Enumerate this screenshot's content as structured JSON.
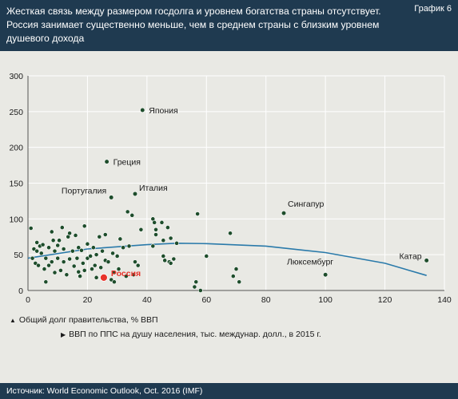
{
  "header": {
    "title": "Жесткая связь между размером госдолга и уровнем богатства страны отсутствует.\nРоссия занимает существенно меньше, чем в среднем страны с близким уровнем\nдушевого дохода",
    "tag": "График 6"
  },
  "notes": {
    "y_note": "Общий долг правительства, % ВВП",
    "x_note": "ВВП по ППС на душу населения, тыс. междунар. долл., в 2015 г."
  },
  "footer": {
    "source": "Источник: World Economic Outlook, Oct. 2016 (IMF)"
  },
  "colors": {
    "header_bg": "#1f3a50",
    "point": "#1e4d2b",
    "highlight": "#e8332a",
    "trend": "#2a7aaa",
    "grid": "#ffffff"
  },
  "chart_data": {
    "type": "scatter",
    "xlim": [
      0,
      140
    ],
    "ylim": [
      0,
      300
    ],
    "x_ticks": [
      0,
      20,
      40,
      60,
      80,
      100,
      120,
      140
    ],
    "y_ticks": [
      0,
      50,
      100,
      150,
      200,
      250,
      300
    ],
    "grid": true,
    "points": [
      [
        1,
        87
      ],
      [
        1.5,
        45
      ],
      [
        2,
        58
      ],
      [
        2.5,
        38
      ],
      [
        3,
        55
      ],
      [
        3,
        67
      ],
      [
        3.5,
        35
      ],
      [
        4,
        62
      ],
      [
        4.5,
        52
      ],
      [
        5,
        64
      ],
      [
        5.5,
        30
      ],
      [
        6,
        45
      ],
      [
        6,
        12
      ],
      [
        7,
        60
      ],
      [
        7,
        35
      ],
      [
        8,
        82
      ],
      [
        8,
        40
      ],
      [
        8.5,
        70
      ],
      [
        9,
        25
      ],
      [
        9,
        55
      ],
      [
        10,
        63
      ],
      [
        10,
        45
      ],
      [
        10.5,
        70
      ],
      [
        11,
        28
      ],
      [
        11.5,
        88
      ],
      [
        12,
        58
      ],
      [
        12,
        40
      ],
      [
        13,
        22
      ],
      [
        13.5,
        75
      ],
      [
        14,
        80
      ],
      [
        14,
        44
      ],
      [
        15,
        55
      ],
      [
        15.5,
        34
      ],
      [
        16,
        77
      ],
      [
        16.5,
        45
      ],
      [
        17,
        26
      ],
      [
        17,
        60
      ],
      [
        17.5,
        20
      ],
      [
        18,
        56
      ],
      [
        18.5,
        38
      ],
      [
        19,
        90
      ],
      [
        19,
        28
      ],
      [
        20,
        45
      ],
      [
        20,
        65
      ],
      [
        21,
        48
      ],
      [
        21.5,
        30
      ],
      [
        22,
        60
      ],
      [
        22.5,
        35
      ],
      [
        23,
        18
      ],
      [
        23,
        50
      ],
      [
        24,
        75
      ],
      [
        24.5,
        32
      ],
      [
        25,
        55
      ],
      [
        25.5,
        20
      ],
      [
        26,
        42
      ],
      [
        26,
        78
      ],
      [
        27,
        40
      ],
      [
        28,
        15
      ],
      [
        28.5,
        52
      ],
      [
        29,
        25
      ],
      [
        29,
        12
      ],
      [
        30,
        48
      ],
      [
        30.5,
        30
      ],
      [
        31,
        72
      ],
      [
        32,
        60
      ],
      [
        33,
        20
      ],
      [
        33.5,
        110
      ],
      [
        34,
        62
      ],
      [
        35,
        105
      ],
      [
        35.5,
        22
      ],
      [
        36,
        40
      ],
      [
        37,
        35
      ],
      [
        38,
        85
      ],
      [
        42,
        62
      ],
      [
        42,
        100
      ],
      [
        42.5,
        95
      ],
      [
        43,
        85
      ],
      [
        43,
        78
      ],
      [
        45,
        95
      ],
      [
        45.5,
        70
      ],
      [
        45.5,
        48
      ],
      [
        46,
        42
      ],
      [
        47,
        88
      ],
      [
        47.5,
        40
      ],
      [
        48,
        73
      ],
      [
        48,
        38
      ],
      [
        49,
        44
      ],
      [
        50,
        66
      ],
      [
        56,
        5
      ],
      [
        56.5,
        12
      ],
      [
        57,
        107
      ],
      [
        58,
        0
      ],
      [
        60,
        48
      ],
      [
        68,
        80
      ],
      [
        69,
        20
      ],
      [
        70,
        30
      ],
      [
        71,
        12
      ],
      [
        100,
        22
      ]
    ],
    "labeled_points": [
      {
        "name": "Япония",
        "x": 38.5,
        "y": 252
      },
      {
        "name": "Греция",
        "x": 26.5,
        "y": 180
      },
      {
        "name": "Португалия",
        "x": 28,
        "y": 130
      },
      {
        "name": "Италия",
        "x": 36,
        "y": 135
      },
      {
        "name": "Сингапур",
        "x": 86,
        "y": 108
      },
      {
        "name": "Люксембург",
        "x": 100,
        "y": 22
      },
      {
        "name": "Катар",
        "x": 134,
        "y": 42
      }
    ],
    "highlight": {
      "name": "Россия",
      "x": 25.5,
      "y": 18
    },
    "trend": [
      [
        0,
        45
      ],
      [
        20,
        58
      ],
      [
        40,
        64
      ],
      [
        50,
        66
      ],
      [
        60,
        65.5
      ],
      [
        80,
        62
      ],
      [
        100,
        53
      ],
      [
        120,
        38
      ],
      [
        134,
        21
      ]
    ]
  }
}
